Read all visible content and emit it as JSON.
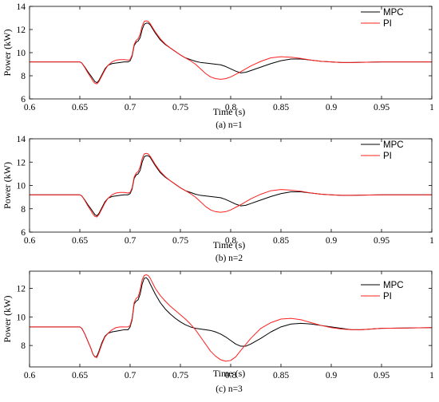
{
  "chart_data": [
    {
      "type": "line",
      "caption": "(a) n=1",
      "xlabel": "Time (s)",
      "ylabel": "Power (kW)",
      "xlim": [
        0.6,
        1.0
      ],
      "ylim": [
        6,
        14
      ],
      "xticks": [
        "0.6",
        "0.65",
        "0.7",
        "0.75",
        "0.8",
        "0.85",
        "0.9",
        "0.95",
        "1"
      ],
      "yticks": [
        "6",
        "8",
        "10",
        "12",
        "14"
      ],
      "grid": false,
      "legend_position": "top-right",
      "series": [
        {
          "name": "MPC",
          "color": "#000000",
          "x": [
            0.6,
            0.65,
            0.652,
            0.655,
            0.658,
            0.661,
            0.663,
            0.665,
            0.667,
            0.669,
            0.672,
            0.675,
            0.678,
            0.682,
            0.686,
            0.69,
            0.694,
            0.698,
            0.7,
            0.702,
            0.704,
            0.706,
            0.708,
            0.71,
            0.712,
            0.714,
            0.716,
            0.718,
            0.72,
            0.725,
            0.73,
            0.735,
            0.74,
            0.745,
            0.75,
            0.755,
            0.76,
            0.765,
            0.77,
            0.775,
            0.78,
            0.785,
            0.79,
            0.795,
            0.8,
            0.805,
            0.81,
            0.815,
            0.82,
            0.83,
            0.84,
            0.85,
            0.86,
            0.87,
            0.88,
            0.89,
            0.9,
            0.91,
            0.92,
            0.95,
            1.0
          ],
          "y": [
            9.2,
            9.2,
            9.1,
            8.75,
            8.35,
            8.0,
            7.75,
            7.5,
            7.4,
            7.6,
            8.1,
            8.6,
            8.9,
            9.05,
            9.1,
            9.15,
            9.2,
            9.2,
            9.3,
            9.7,
            10.6,
            10.9,
            11.0,
            11.3,
            12.0,
            12.45,
            12.55,
            12.55,
            12.4,
            11.7,
            11.1,
            10.7,
            10.4,
            10.1,
            9.8,
            9.55,
            9.4,
            9.25,
            9.15,
            9.1,
            9.05,
            9.0,
            8.95,
            8.8,
            8.6,
            8.4,
            8.25,
            8.3,
            8.45,
            8.75,
            9.05,
            9.3,
            9.45,
            9.45,
            9.35,
            9.25,
            9.2,
            9.15,
            9.15,
            9.2,
            9.2
          ]
        },
        {
          "name": "PI",
          "color": "#ff2020",
          "x": [
            0.6,
            0.65,
            0.652,
            0.655,
            0.658,
            0.661,
            0.663,
            0.665,
            0.667,
            0.669,
            0.672,
            0.675,
            0.678,
            0.682,
            0.686,
            0.69,
            0.694,
            0.698,
            0.7,
            0.702,
            0.704,
            0.706,
            0.708,
            0.71,
            0.712,
            0.714,
            0.716,
            0.718,
            0.72,
            0.725,
            0.73,
            0.735,
            0.74,
            0.745,
            0.75,
            0.755,
            0.76,
            0.765,
            0.77,
            0.775,
            0.78,
            0.785,
            0.79,
            0.795,
            0.8,
            0.81,
            0.82,
            0.83,
            0.84,
            0.85,
            0.86,
            0.87,
            0.88,
            0.89,
            0.9,
            0.91,
            0.92,
            0.95,
            1.0
          ],
          "y": [
            9.2,
            9.2,
            9.1,
            8.7,
            8.25,
            7.85,
            7.55,
            7.35,
            7.3,
            7.5,
            8.0,
            8.5,
            8.9,
            9.2,
            9.35,
            9.4,
            9.4,
            9.35,
            9.4,
            9.8,
            10.7,
            11.05,
            11.2,
            11.6,
            12.3,
            12.7,
            12.75,
            12.7,
            12.5,
            11.8,
            11.2,
            10.75,
            10.4,
            10.1,
            9.8,
            9.55,
            9.3,
            9.0,
            8.6,
            8.2,
            7.9,
            7.75,
            7.7,
            7.75,
            7.9,
            8.35,
            8.85,
            9.25,
            9.55,
            9.65,
            9.6,
            9.5,
            9.35,
            9.25,
            9.2,
            9.15,
            9.15,
            9.2,
            9.2
          ]
        }
      ]
    },
    {
      "type": "line",
      "caption": "(b) n=2",
      "xlabel": "Time (s)",
      "ylabel": "Power (kW)",
      "xlim": [
        0.6,
        1.0
      ],
      "ylim": [
        6,
        14
      ],
      "xticks": [
        "0.6",
        "0.65",
        "0.7",
        "0.75",
        "0.8",
        "0.85",
        "0.9",
        "0.95",
        "1"
      ],
      "yticks": [
        "6",
        "8",
        "10",
        "12",
        "14"
      ],
      "grid": false,
      "legend_position": "top-right",
      "series": [
        {
          "name": "MPC",
          "color": "#000000",
          "x": [
            0.6,
            0.65,
            0.652,
            0.655,
            0.658,
            0.661,
            0.663,
            0.665,
            0.667,
            0.669,
            0.672,
            0.675,
            0.678,
            0.682,
            0.686,
            0.69,
            0.694,
            0.698,
            0.7,
            0.702,
            0.704,
            0.706,
            0.708,
            0.71,
            0.712,
            0.714,
            0.716,
            0.718,
            0.72,
            0.725,
            0.73,
            0.735,
            0.74,
            0.745,
            0.75,
            0.755,
            0.76,
            0.765,
            0.77,
            0.775,
            0.78,
            0.785,
            0.79,
            0.795,
            0.8,
            0.805,
            0.81,
            0.815,
            0.82,
            0.83,
            0.84,
            0.85,
            0.86,
            0.87,
            0.88,
            0.89,
            0.9,
            0.91,
            0.92,
            0.95,
            1.0
          ],
          "y": [
            9.2,
            9.2,
            9.1,
            8.75,
            8.35,
            8.0,
            7.75,
            7.5,
            7.4,
            7.6,
            8.1,
            8.6,
            8.9,
            9.05,
            9.1,
            9.15,
            9.2,
            9.2,
            9.3,
            9.7,
            10.6,
            10.9,
            11.0,
            11.3,
            12.0,
            12.45,
            12.55,
            12.55,
            12.4,
            11.7,
            11.1,
            10.7,
            10.4,
            10.1,
            9.8,
            9.55,
            9.4,
            9.25,
            9.15,
            9.1,
            9.05,
            9.0,
            8.95,
            8.8,
            8.6,
            8.4,
            8.25,
            8.3,
            8.45,
            8.75,
            9.05,
            9.3,
            9.45,
            9.45,
            9.35,
            9.25,
            9.2,
            9.15,
            9.15,
            9.2,
            9.2
          ]
        },
        {
          "name": "PI",
          "color": "#ff2020",
          "x": [
            0.6,
            0.65,
            0.652,
            0.655,
            0.658,
            0.661,
            0.663,
            0.665,
            0.667,
            0.669,
            0.672,
            0.675,
            0.678,
            0.682,
            0.686,
            0.69,
            0.694,
            0.698,
            0.7,
            0.702,
            0.704,
            0.706,
            0.708,
            0.71,
            0.712,
            0.714,
            0.716,
            0.718,
            0.72,
            0.725,
            0.73,
            0.735,
            0.74,
            0.745,
            0.75,
            0.755,
            0.76,
            0.765,
            0.77,
            0.775,
            0.78,
            0.785,
            0.79,
            0.795,
            0.8,
            0.81,
            0.82,
            0.83,
            0.84,
            0.85,
            0.86,
            0.87,
            0.88,
            0.89,
            0.9,
            0.91,
            0.92,
            0.95,
            1.0
          ],
          "y": [
            9.2,
            9.2,
            9.1,
            8.7,
            8.25,
            7.85,
            7.55,
            7.35,
            7.3,
            7.5,
            8.0,
            8.5,
            8.9,
            9.2,
            9.35,
            9.4,
            9.4,
            9.35,
            9.4,
            9.8,
            10.7,
            11.05,
            11.2,
            11.6,
            12.3,
            12.7,
            12.75,
            12.7,
            12.5,
            11.8,
            11.2,
            10.75,
            10.4,
            10.1,
            9.8,
            9.55,
            9.3,
            9.0,
            8.6,
            8.2,
            7.9,
            7.75,
            7.7,
            7.75,
            7.9,
            8.35,
            8.85,
            9.25,
            9.55,
            9.65,
            9.6,
            9.5,
            9.35,
            9.25,
            9.2,
            9.15,
            9.15,
            9.2,
            9.2
          ]
        }
      ]
    },
    {
      "type": "line",
      "caption": "(c) n=3",
      "xlabel": "Time (s)",
      "ylabel": "Power (kW)",
      "xlim": [
        0.6,
        1.0
      ],
      "ylim": [
        6.5,
        13.2
      ],
      "xticks": [
        "0.6",
        "0.65",
        "0.7",
        "0.75",
        "0.8",
        "0.85",
        "0.9",
        "0.95",
        "1"
      ],
      "yticks": [
        "8",
        "10",
        "12"
      ],
      "grid": false,
      "legend_position": "top-right",
      "series": [
        {
          "name": "MPC",
          "color": "#000000",
          "x": [
            0.6,
            0.65,
            0.652,
            0.655,
            0.658,
            0.661,
            0.663,
            0.665,
            0.667,
            0.669,
            0.672,
            0.675,
            0.678,
            0.682,
            0.686,
            0.69,
            0.694,
            0.698,
            0.7,
            0.702,
            0.704,
            0.706,
            0.708,
            0.71,
            0.712,
            0.714,
            0.716,
            0.718,
            0.72,
            0.725,
            0.73,
            0.735,
            0.74,
            0.745,
            0.75,
            0.755,
            0.76,
            0.765,
            0.77,
            0.775,
            0.78,
            0.785,
            0.79,
            0.795,
            0.8,
            0.805,
            0.81,
            0.815,
            0.82,
            0.83,
            0.84,
            0.85,
            0.86,
            0.87,
            0.88,
            0.89,
            0.9,
            0.91,
            0.92,
            0.93,
            0.95,
            1.0
          ],
          "y": [
            9.3,
            9.3,
            9.2,
            8.8,
            8.3,
            7.8,
            7.4,
            7.2,
            7.25,
            7.6,
            8.2,
            8.65,
            8.85,
            8.95,
            9.0,
            9.05,
            9.1,
            9.1,
            9.3,
            9.8,
            10.9,
            11.1,
            11.2,
            11.6,
            12.3,
            12.7,
            12.75,
            12.6,
            12.3,
            11.6,
            11.0,
            10.55,
            10.2,
            9.9,
            9.65,
            9.45,
            9.3,
            9.2,
            9.15,
            9.1,
            9.05,
            8.95,
            8.8,
            8.6,
            8.35,
            8.1,
            7.95,
            7.95,
            8.1,
            8.5,
            8.95,
            9.3,
            9.5,
            9.55,
            9.5,
            9.4,
            9.3,
            9.2,
            9.1,
            9.1,
            9.2,
            9.25
          ]
        },
        {
          "name": "PI",
          "color": "#ff2020",
          "x": [
            0.6,
            0.65,
            0.652,
            0.655,
            0.658,
            0.661,
            0.663,
            0.665,
            0.667,
            0.669,
            0.672,
            0.675,
            0.678,
            0.682,
            0.686,
            0.69,
            0.694,
            0.698,
            0.7,
            0.702,
            0.704,
            0.706,
            0.708,
            0.71,
            0.712,
            0.714,
            0.716,
            0.718,
            0.72,
            0.725,
            0.73,
            0.735,
            0.74,
            0.745,
            0.75,
            0.755,
            0.76,
            0.765,
            0.77,
            0.775,
            0.78,
            0.785,
            0.79,
            0.795,
            0.8,
            0.805,
            0.81,
            0.82,
            0.83,
            0.84,
            0.85,
            0.86,
            0.87,
            0.88,
            0.89,
            0.9,
            0.91,
            0.92,
            0.93,
            0.95,
            1.0
          ],
          "y": [
            9.3,
            9.3,
            9.2,
            8.8,
            8.3,
            7.8,
            7.4,
            7.2,
            7.15,
            7.5,
            8.1,
            8.6,
            8.85,
            9.1,
            9.25,
            9.3,
            9.3,
            9.3,
            9.4,
            9.9,
            11.0,
            11.3,
            11.4,
            11.9,
            12.6,
            12.9,
            12.95,
            12.9,
            12.7,
            12.0,
            11.5,
            11.1,
            10.75,
            10.45,
            10.15,
            9.85,
            9.5,
            9.1,
            8.6,
            8.1,
            7.6,
            7.25,
            7.0,
            6.9,
            6.95,
            7.2,
            7.65,
            8.5,
            9.2,
            9.6,
            9.85,
            9.9,
            9.8,
            9.6,
            9.4,
            9.25,
            9.15,
            9.1,
            9.1,
            9.2,
            9.25
          ]
        }
      ]
    }
  ]
}
